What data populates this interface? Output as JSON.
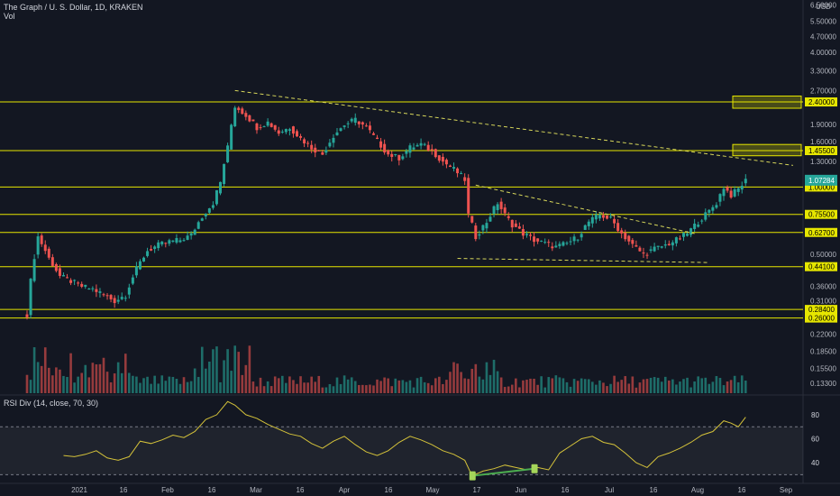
{
  "header": {
    "symbol_line": "The Graph / U. S. Dollar, 1D, KRAKEN",
    "vol_label": "Vol",
    "currency": "USD",
    "rsi_label": "RSI Div (14, close, 70, 30)"
  },
  "colors": {
    "background": "#131722",
    "up": "#26a69a",
    "down": "#ef5350",
    "level_line": "#e6e600",
    "trendline": "#d6d65a",
    "rsi_line": "#d4c23a",
    "current_price_bg": "#26a69a",
    "divergence_line": "#4caf50"
  },
  "chart_data": [
    {
      "type": "candlestick",
      "name": "price",
      "y_scale": "log",
      "ylim": [
        0.12,
        6.6
      ],
      "y_ticks": [
        "6.50000",
        "5.50000",
        "4.70000",
        "4.00000",
        "3.30000",
        "2.70000",
        "2.40000",
        "1.90000",
        "1.60000",
        "1.45500",
        "1.30000",
        "1.07284",
        "1.00000",
        "0.75500",
        "0.62700",
        "0.50000",
        "0.44100",
        "0.36000",
        "0.31000",
        "0.28400",
        "0.26000",
        "0.22000",
        "0.18500",
        "0.15500",
        "0.13300"
      ],
      "x_ticks": [
        "2021",
        "16",
        "Feb",
        "16",
        "Mar",
        "16",
        "Apr",
        "16",
        "May",
        "17",
        "Jun",
        "16",
        "Jul",
        "16",
        "Aug",
        "16",
        "Sep"
      ],
      "highlighted_levels": [
        "2.40000",
        "1.45500",
        "1.00000",
        "0.75500",
        "0.62700",
        "0.44100",
        "0.28400",
        "0.26000"
      ],
      "current_price": "1.07284",
      "price_path": [
        [
          0,
          0.27
        ],
        [
          3,
          0.6
        ],
        [
          6,
          0.48
        ],
        [
          9,
          0.4
        ],
        [
          12,
          0.38
        ],
        [
          15,
          0.36
        ],
        [
          18,
          0.35
        ],
        [
          21,
          0.33
        ],
        [
          24,
          0.31
        ],
        [
          27,
          0.33
        ],
        [
          30,
          0.43
        ],
        [
          33,
          0.52
        ],
        [
          36,
          0.55
        ],
        [
          39,
          0.57
        ],
        [
          42,
          0.58
        ],
        [
          45,
          0.61
        ],
        [
          48,
          0.74
        ],
        [
          51,
          0.85
        ],
        [
          53,
          1.05
        ],
        [
          55,
          1.5
        ],
        [
          57,
          2.3
        ],
        [
          60,
          2.1
        ],
        [
          63,
          1.85
        ],
        [
          66,
          1.95
        ],
        [
          69,
          1.75
        ],
        [
          72,
          1.85
        ],
        [
          75,
          1.65
        ],
        [
          78,
          1.5
        ],
        [
          81,
          1.4
        ],
        [
          84,
          1.7
        ],
        [
          87,
          1.9
        ],
        [
          90,
          2.0
        ],
        [
          93,
          1.85
        ],
        [
          96,
          1.6
        ],
        [
          99,
          1.4
        ],
        [
          102,
          1.35
        ],
        [
          105,
          1.5
        ],
        [
          108,
          1.55
        ],
        [
          111,
          1.45
        ],
        [
          114,
          1.3
        ],
        [
          117,
          1.2
        ],
        [
          120,
          1.08
        ],
        [
          121,
          0.75
        ],
        [
          123,
          0.6
        ],
        [
          126,
          0.7
        ],
        [
          129,
          0.85
        ],
        [
          131,
          0.75
        ],
        [
          133,
          0.68
        ],
        [
          136,
          0.62
        ],
        [
          139,
          0.58
        ],
        [
          142,
          0.56
        ],
        [
          145,
          0.54
        ],
        [
          148,
          0.56
        ],
        [
          151,
          0.6
        ],
        [
          154,
          0.7
        ],
        [
          157,
          0.75
        ],
        [
          160,
          0.72
        ],
        [
          163,
          0.62
        ],
        [
          166,
          0.55
        ],
        [
          169,
          0.5
        ],
        [
          172,
          0.53
        ],
        [
          175,
          0.55
        ],
        [
          178,
          0.58
        ],
        [
          181,
          0.62
        ],
        [
          184,
          0.7
        ],
        [
          187,
          0.78
        ],
        [
          189,
          0.85
        ],
        [
          191,
          1.0
        ],
        [
          193,
          0.92
        ],
        [
          195,
          0.98
        ],
        [
          197,
          1.07
        ]
      ],
      "trendlines": [
        {
          "from": [
            57,
            2.7
          ],
          "to": [
            210,
            1.25
          ],
          "style": "dashed"
        },
        {
          "from": [
            123,
            1.02
          ],
          "to": [
            183,
            0.62
          ],
          "style": "dashed"
        },
        {
          "from": [
            118,
            0.48
          ],
          "to": [
            187,
            0.46
          ],
          "style": "dashed"
        }
      ]
    },
    {
      "type": "bar",
      "name": "volume",
      "note_hidden": false
    },
    {
      "type": "line",
      "name": "RSI",
      "ylim": [
        25,
        95
      ],
      "y_ticks": [
        "80",
        "60",
        "40"
      ],
      "bands": [
        30,
        70
      ],
      "rsi_path": [
        [
          10,
          46
        ],
        [
          13,
          45
        ],
        [
          16,
          47
        ],
        [
          19,
          50
        ],
        [
          22,
          44
        ],
        [
          25,
          42
        ],
        [
          28,
          45
        ],
        [
          31,
          58
        ],
        [
          34,
          56
        ],
        [
          37,
          59
        ],
        [
          40,
          63
        ],
        [
          43,
          61
        ],
        [
          46,
          66
        ],
        [
          49,
          76
        ],
        [
          52,
          80
        ],
        [
          55,
          91
        ],
        [
          57,
          88
        ],
        [
          60,
          80
        ],
        [
          63,
          77
        ],
        [
          66,
          72
        ],
        [
          69,
          68
        ],
        [
          72,
          64
        ],
        [
          75,
          62
        ],
        [
          78,
          56
        ],
        [
          81,
          52
        ],
        [
          84,
          58
        ],
        [
          87,
          62
        ],
        [
          90,
          55
        ],
        [
          93,
          49
        ],
        [
          96,
          46
        ],
        [
          99,
          50
        ],
        [
          102,
          57
        ],
        [
          105,
          62
        ],
        [
          108,
          59
        ],
        [
          111,
          55
        ],
        [
          114,
          50
        ],
        [
          117,
          47
        ],
        [
          120,
          42
        ],
        [
          122,
          29
        ],
        [
          125,
          33
        ],
        [
          128,
          35
        ],
        [
          131,
          38
        ],
        [
          134,
          36
        ],
        [
          137,
          34
        ],
        [
          140,
          36
        ],
        [
          143,
          34
        ],
        [
          146,
          48
        ],
        [
          149,
          54
        ],
        [
          152,
          60
        ],
        [
          155,
          62
        ],
        [
          158,
          57
        ],
        [
          161,
          55
        ],
        [
          164,
          48
        ],
        [
          167,
          40
        ],
        [
          170,
          36
        ],
        [
          173,
          45
        ],
        [
          176,
          48
        ],
        [
          179,
          52
        ],
        [
          182,
          57
        ],
        [
          185,
          63
        ],
        [
          188,
          66
        ],
        [
          191,
          75
        ],
        [
          193,
          73
        ],
        [
          195,
          70
        ],
        [
          197,
          78
        ]
      ],
      "divergence": {
        "from": [
          122,
          29
        ],
        "to": [
          139,
          35
        ]
      }
    }
  ]
}
